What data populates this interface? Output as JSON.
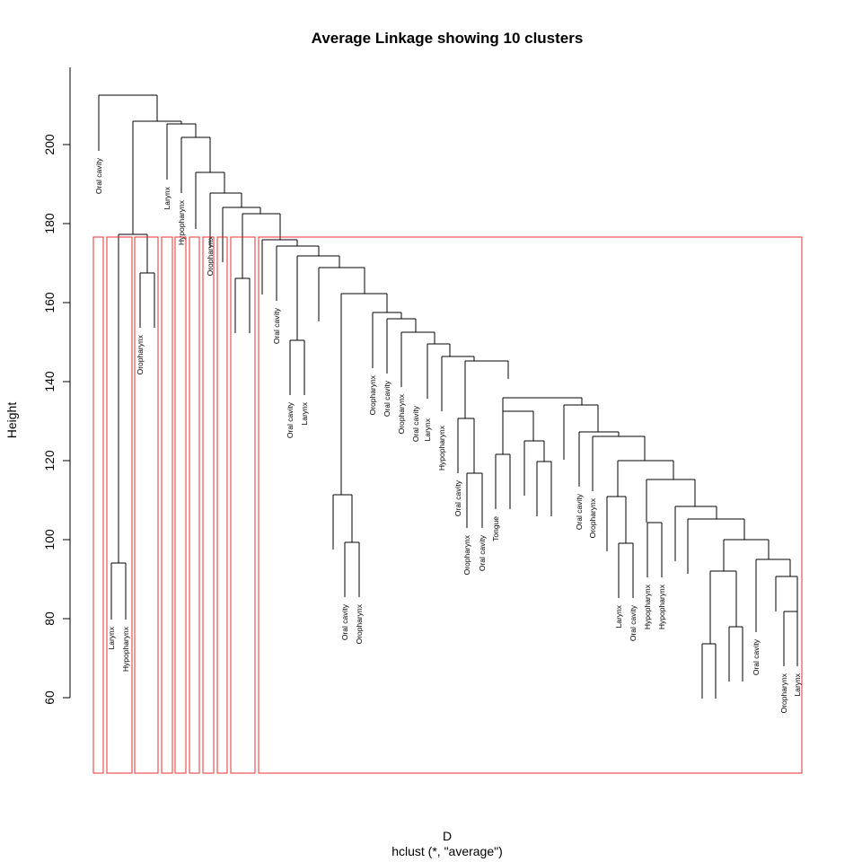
{
  "title": "Average Linkage showing 10 clusters",
  "ylabel": "Height",
  "xlabel": "D",
  "subtitle": "hclust (*, \"average\")",
  "yticks": [
    "60",
    "80",
    "100",
    "120",
    "140",
    "160",
    "180",
    "200"
  ],
  "colors": {
    "line": "#000000",
    "cluster_box": "#e8312f"
  },
  "chart_data": {
    "type": "dendrogram",
    "method": "average",
    "n_clusters": 10,
    "cut_height": 176.5,
    "ylim": [
      40,
      220
    ],
    "leaves": [
      "Oral cavity",
      "Larynx",
      "Hypopharynx",
      "Oropharynx",
      "",
      "Larynx",
      "Hypopharynx",
      "Oropharynx",
      "",
      "",
      "",
      "Oral cavity",
      "Oral cavity",
      "Larynx",
      "",
      "Oral cavity",
      "Oropharynx",
      "Oropharynx",
      "Oral cavity",
      "Oropharynx",
      "Oral cavity",
      "Larynx",
      "Hypopharynx",
      "Oral cavity",
      "Oropharynx",
      "Oral cavity",
      "Tongue",
      "",
      "",
      "",
      "Oral cavity",
      "Oropharynx",
      "",
      "Larynx",
      "Oral cavity",
      "Hypopharynx",
      "Hypopharynx",
      "",
      "",
      "",
      "",
      "",
      "",
      "Oral cavity",
      "Oropharynx",
      "Larynx"
    ],
    "merges": [
      {
        "a": "L1",
        "b": "L2",
        "h": 94
      },
      {
        "a": "L3",
        "b": "L4",
        "h": 167.5
      },
      {
        "a": "m0",
        "b": "m1",
        "h": 177.3
      },
      {
        "a": "L9",
        "b": "L10",
        "h": 166.3
      },
      {
        "a": "L12",
        "b": "L13",
        "h": 150.3
      },
      {
        "a": "L15",
        "b": "L16",
        "h": 99.3
      },
      {
        "a": "L14",
        "b": "m5",
        "h": 111.3
      },
      {
        "a": "L20",
        "b": "L21",
        "h": 116.8
      },
      {
        "a": "L19",
        "b": "m7",
        "h": 130.8
      },
      {
        "a": "L27",
        "b": "L28",
        "h": 120
      },
      {
        "a": "L26",
        "b": "m9",
        "h": 125
      },
      {
        "a": "L25",
        "b": "m10",
        "h": 132.5
      },
      {
        "a": "L24",
        "b": "m11",
        "h": 121.7
      },
      {
        "a": "L33",
        "b": "L34",
        "h": 99
      },
      {
        "a": "L32",
        "b": "m13",
        "h": 110.5
      },
      {
        "a": "L35",
        "b": "L36",
        "h": 104.3
      },
      {
        "a": "L41",
        "b": "L42",
        "h": 73.5
      },
      {
        "a": "L43",
        "b": "L44",
        "h": 77.9
      },
      {
        "a": "m16",
        "b": "m17",
        "h": 92
      },
      {
        "a": "L46",
        "b": "L47",
        "h": 81.7
      },
      {
        "a": "L45",
        "b": "m19",
        "h": 90.5
      },
      {
        "a": "L44b",
        "b": "m20",
        "h": 95
      },
      {
        "a": "m18",
        "b": "m21",
        "h": 100
      },
      {
        "a": "L40",
        "b": "m22",
        "h": 105
      },
      {
        "a": "L39",
        "b": "m23",
        "h": 108.3
      },
      {
        "a": "L38",
        "b": "m24",
        "h": 115.3
      },
      {
        "a": "m15",
        "b": "m25",
        "h": 115.3
      },
      {
        "a": "m14",
        "b": "m26",
        "h": 120
      },
      {
        "a": "L31",
        "b": "m27",
        "h": 126
      },
      {
        "a": "L30",
        "b": "m28",
        "h": 127.2
      },
      {
        "a": "L29",
        "b": "m29",
        "h": 134.2
      },
      {
        "a": "m12",
        "b": "m30",
        "h": 135.7
      },
      {
        "a": "m8",
        "b": "m31",
        "h": 140.8
      },
      {
        "a": "L18",
        "b": "m32",
        "h": 145
      },
      {
        "a": "L17",
        "b": "m33",
        "h": 146.5
      },
      {
        "a": "L16b",
        "b": "m34",
        "h": 149.3
      },
      {
        "a": "L15b",
        "b": "m35",
        "h": 152.3
      },
      {
        "a": "L14b",
        "b": "m36",
        "h": 155.8
      },
      {
        "a": "L13b",
        "b": "m37",
        "h": 157.3
      },
      {
        "a": "m6",
        "b": "m38",
        "h": 162.3
      },
      {
        "a": "L12b",
        "b": "m39",
        "h": 168.8
      },
      {
        "a": "m4",
        "b": "m40",
        "h": 171.8
      },
      {
        "a": "L11",
        "b": "m41",
        "h": 174.3
      },
      {
        "a": "L10b",
        "b": "m42",
        "h": 176
      },
      {
        "a": "m3",
        "b": "m43",
        "h": 182.5
      },
      {
        "a": "L8",
        "b": "m44",
        "h": 184
      },
      {
        "a": "L7",
        "b": "m45",
        "h": 187.5
      },
      {
        "a": "L6",
        "b": "m46",
        "h": 193
      },
      {
        "a": "L5",
        "b": "m47",
        "h": 202
      },
      {
        "a": "L4b",
        "b": "m48",
        "h": 205
      },
      {
        "a": "m2",
        "b": "m49",
        "h": 205.8
      },
      {
        "a": "L0",
        "b": "m50",
        "h": 212.3
      }
    ]
  }
}
